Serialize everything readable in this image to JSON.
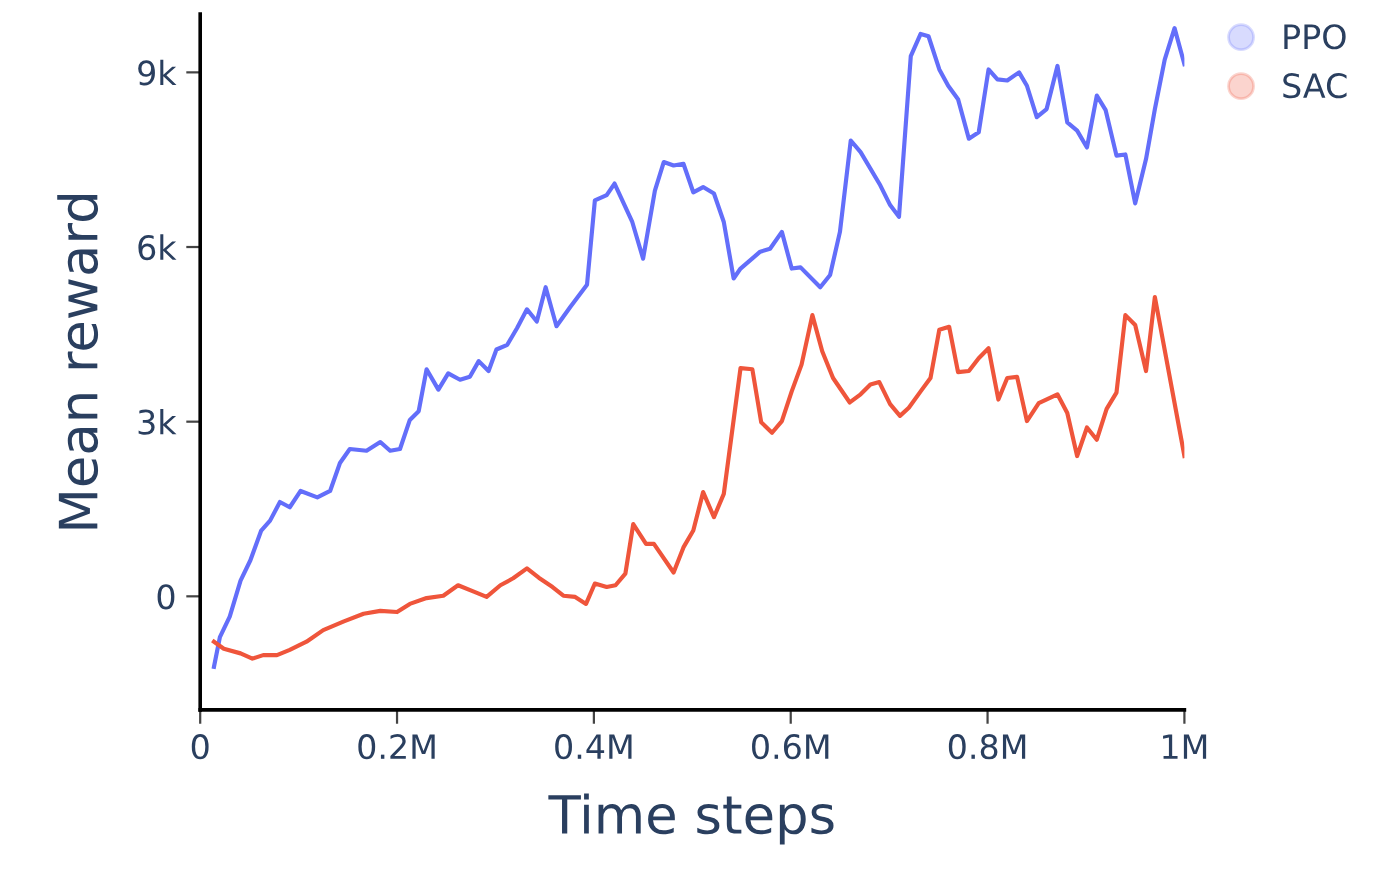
{
  "chart_data": {
    "type": "line",
    "xlabel": "Time steps",
    "ylabel": "Mean reward",
    "xlim": [
      0,
      1000000
    ],
    "ylim": [
      -1950,
      10000
    ],
    "xticks": [
      0,
      {
        "value": 200000,
        "label": "0.2M"
      },
      {
        "value": 400000,
        "label": "0.4M"
      },
      {
        "value": 600000,
        "label": "0.6M"
      },
      {
        "value": 800000,
        "label": "0.8M"
      },
      {
        "value": 1000000,
        "label": "1M"
      }
    ],
    "yticks": [
      0,
      {
        "value": 3000,
        "label": "3k"
      },
      {
        "value": 6000,
        "label": "6k"
      },
      {
        "value": 9000,
        "label": "9k"
      }
    ],
    "grid": false,
    "legend": "top right",
    "marker": "none",
    "line_style": "solid",
    "series": [
      {
        "name": "PPO",
        "color": "#636efa",
        "x": [
          14000,
          20000,
          30000,
          41000,
          51000,
          62000,
          71000,
          81000,
          91000,
          102000,
          119000,
          132000,
          142000,
          152000,
          169000,
          183000,
          193000,
          203000,
          213000,
          222000,
          230000,
          242000,
          252000,
          264000,
          274000,
          283000,
          293000,
          301000,
          312000,
          322000,
          332000,
          342000,
          351000,
          362000,
          376000,
          393000,
          401000,
          413000,
          421000,
          439000,
          450000,
          462000,
          471000,
          481000,
          491000,
          501000,
          511000,
          522000,
          532000,
          542000,
          549000,
          569000,
          579000,
          591000,
          601000,
          610000,
          630000,
          640000,
          650000,
          661000,
          671000,
          691000,
          701000,
          710000,
          722000,
          732000,
          740000,
          751000,
          760000,
          770000,
          781000,
          791000,
          801000,
          810000,
          820000,
          832000,
          840000,
          850000,
          860000,
          871000,
          881000,
          891000,
          901000,
          911000,
          920000,
          931000,
          940000,
          950000,
          961000,
          970000,
          980000,
          990000,
          1000000
        ],
        "values": [
          -1210,
          -700,
          -350,
          270,
          620,
          1130,
          1300,
          1620,
          1530,
          1810,
          1700,
          1810,
          2290,
          2530,
          2500,
          2650,
          2500,
          2530,
          3030,
          3180,
          3900,
          3550,
          3830,
          3720,
          3770,
          4040,
          3870,
          4240,
          4320,
          4610,
          4930,
          4720,
          5310,
          4640,
          4970,
          5350,
          6800,
          6890,
          7090,
          6430,
          5800,
          6970,
          7460,
          7400,
          7430,
          6940,
          7030,
          6920,
          6430,
          5460,
          5630,
          5920,
          5970,
          6260,
          5630,
          5650,
          5310,
          5520,
          6260,
          7830,
          7630,
          7060,
          6720,
          6520,
          9280,
          9660,
          9620,
          9050,
          8770,
          8540,
          7860,
          7970,
          9050,
          8880,
          8860,
          9000,
          8770,
          8230,
          8370,
          9110,
          8140,
          8000,
          7710,
          8600,
          8350,
          7570,
          7590,
          6750,
          7510,
          8370,
          9220,
          9760,
          9140
        ]
      },
      {
        "name": "SAC",
        "color": "#ef553b",
        "x": [
          14000,
          24000,
          41000,
          53000,
          64000,
          78000,
          91000,
          108000,
          125000,
          146000,
          166000,
          183000,
          200000,
          213000,
          230000,
          247000,
          262000,
          278000,
          291000,
          305000,
          318000,
          332000,
          344000,
          358000,
          369000,
          381000,
          392000,
          401000,
          413000,
          422000,
          432000,
          440000,
          453000,
          461000,
          481000,
          491000,
          501000,
          511000,
          522000,
          532000,
          549000,
          561000,
          570000,
          581000,
          591000,
          601000,
          611000,
          622000,
          632000,
          643000,
          660000,
          671000,
          681000,
          690000,
          701000,
          711000,
          720000,
          732000,
          742000,
          751000,
          761000,
          770000,
          781000,
          791000,
          801000,
          811000,
          820000,
          830000,
          840000,
          852000,
          871000,
          881000,
          891000,
          901000,
          911000,
          921000,
          931000,
          940000,
          950000,
          961000,
          970000,
          1000000
        ],
        "values": [
          -780,
          -900,
          -980,
          -1070,
          -1010,
          -1010,
          -920,
          -780,
          -580,
          -430,
          -300,
          -250,
          -270,
          -130,
          -30,
          10,
          190,
          80,
          -10,
          190,
          310,
          480,
          320,
          160,
          10,
          -10,
          -130,
          220,
          160,
          190,
          390,
          1240,
          900,
          900,
          410,
          840,
          1130,
          1790,
          1360,
          1760,
          3920,
          3900,
          2990,
          2810,
          3010,
          3520,
          3980,
          4830,
          4210,
          3750,
          3330,
          3470,
          3640,
          3680,
          3300,
          3100,
          3240,
          3520,
          3750,
          4580,
          4630,
          3850,
          3870,
          4090,
          4260,
          3380,
          3750,
          3770,
          3010,
          3320,
          3470,
          3150,
          2410,
          2900,
          2690,
          3220,
          3500,
          4830,
          4660,
          3870,
          5140,
          2410
        ]
      }
    ]
  }
}
